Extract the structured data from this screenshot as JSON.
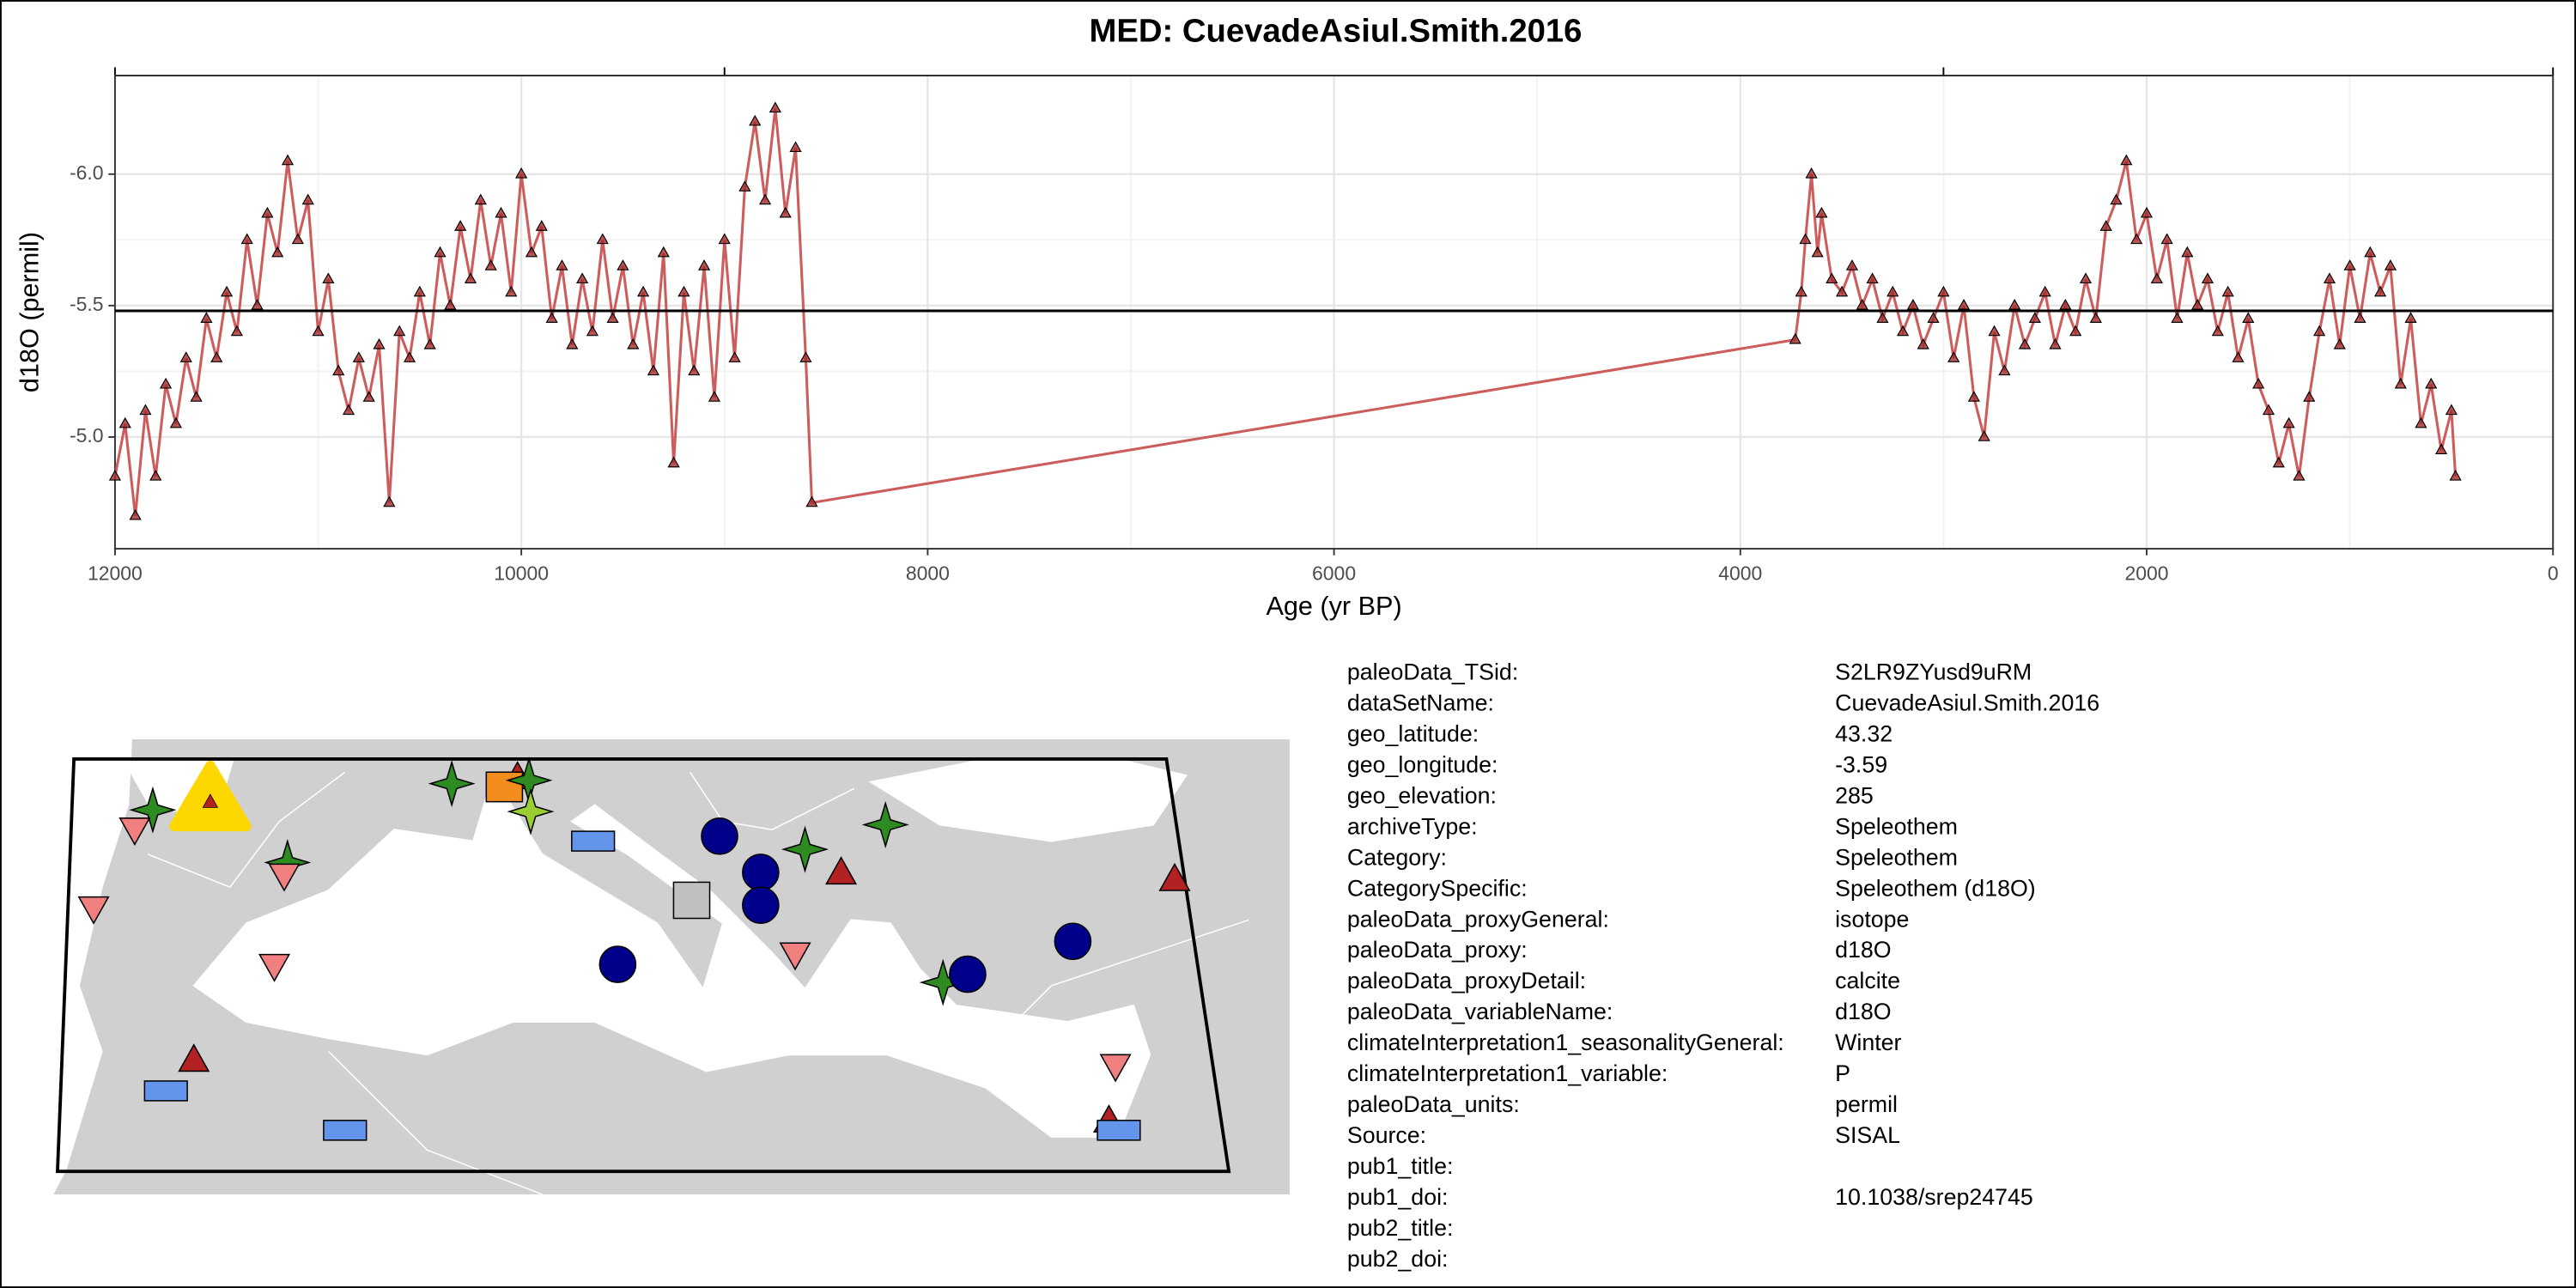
{
  "chart_data": {
    "type": "line",
    "title": "MED: CuevadeAsiul.Smith.2016",
    "xlabel": "Age (yr BP)",
    "ylabel": "d18O (permil)",
    "x": [
      12000,
      11950,
      11900,
      11850,
      11800,
      11750,
      11700,
      11650,
      11600,
      11550,
      11500,
      11450,
      11400,
      11350,
      11300,
      11250,
      11200,
      11150,
      11100,
      11050,
      11000,
      10950,
      10900,
      10850,
      10800,
      10750,
      10700,
      10650,
      10600,
      10550,
      10500,
      10450,
      10400,
      10350,
      10300,
      10250,
      10200,
      10150,
      10100,
      10050,
      10000,
      9950,
      9900,
      9850,
      9800,
      9750,
      9700,
      9650,
      9600,
      9550,
      9500,
      9450,
      9400,
      9350,
      9300,
      9250,
      9200,
      9150,
      9100,
      9050,
      9000,
      8950,
      8900,
      8850,
      8800,
      8750,
      8700,
      8650,
      8600,
      8570,
      3730,
      3700,
      3680,
      3650,
      3620,
      3600,
      3550,
      3500,
      3450,
      3400,
      3350,
      3300,
      3250,
      3200,
      3150,
      3100,
      3050,
      3000,
      2950,
      2900,
      2850,
      2800,
      2750,
      2700,
      2650,
      2600,
      2550,
      2500,
      2450,
      2400,
      2350,
      2300,
      2250,
      2200,
      2150,
      2100,
      2050,
      2000,
      1950,
      1900,
      1850,
      1800,
      1750,
      1700,
      1650,
      1600,
      1550,
      1500,
      1450,
      1400,
      1350,
      1300,
      1250,
      1200,
      1150,
      1100,
      1050,
      1000,
      950,
      900,
      850,
      800,
      750,
      700,
      650,
      600,
      550,
      500,
      480
    ],
    "values": [
      -4.85,
      -5.05,
      -4.7,
      -5.1,
      -4.85,
      -5.2,
      -5.05,
      -5.3,
      -5.15,
      -5.45,
      -5.3,
      -5.55,
      -5.4,
      -5.75,
      -5.5,
      -5.85,
      -5.7,
      -6.05,
      -5.75,
      -5.9,
      -5.4,
      -5.6,
      -5.25,
      -5.1,
      -5.3,
      -5.15,
      -5.35,
      -4.75,
      -5.4,
      -5.3,
      -5.55,
      -5.35,
      -5.7,
      -5.5,
      -5.8,
      -5.6,
      -5.9,
      -5.65,
      -5.85,
      -5.55,
      -6.0,
      -5.7,
      -5.8,
      -5.45,
      -5.65,
      -5.35,
      -5.6,
      -5.4,
      -5.75,
      -5.45,
      -5.65,
      -5.35,
      -5.55,
      -5.25,
      -5.7,
      -4.9,
      -5.55,
      -5.25,
      -5.65,
      -5.15,
      -5.75,
      -5.3,
      -5.95,
      -6.2,
      -5.9,
      -6.25,
      -5.85,
      -6.1,
      -5.3,
      -4.75,
      -5.37,
      -5.55,
      -5.75,
      -6.0,
      -5.7,
      -5.85,
      -5.6,
      -5.55,
      -5.65,
      -5.5,
      -5.6,
      -5.45,
      -5.55,
      -5.4,
      -5.5,
      -5.35,
      -5.45,
      -5.55,
      -5.3,
      -5.5,
      -5.15,
      -5.0,
      -5.4,
      -5.25,
      -5.5,
      -5.35,
      -5.45,
      -5.55,
      -5.35,
      -5.5,
      -5.4,
      -5.6,
      -5.45,
      -5.8,
      -5.9,
      -6.05,
      -5.75,
      -5.85,
      -5.6,
      -5.75,
      -5.45,
      -5.7,
      -5.5,
      -5.6,
      -5.4,
      -5.55,
      -5.3,
      -5.45,
      -5.2,
      -5.1,
      -4.9,
      -5.05,
      -4.85,
      -5.15,
      -5.4,
      -5.6,
      -5.35,
      -5.65,
      -5.45,
      -5.7,
      -5.55,
      -5.65,
      -5.2,
      -5.45,
      -5.05,
      -5.2,
      -4.95,
      -5.1,
      -4.85
    ],
    "color": "#cd5c5c",
    "marker_color": "#a52a2a",
    "xlim": [
      12000,
      0
    ],
    "xticks": [
      12000,
      10000,
      8000,
      6000,
      4000,
      2000,
      0
    ],
    "top_xticks": [
      12000,
      9000,
      3000,
      0
    ],
    "ylim": [
      -4.575,
      -6.375
    ],
    "yticks": [
      {
        "value": -6,
        "label": "-6.0"
      },
      -5.5,
      {
        "value": -5,
        "label": "-5.0"
      }
    ],
    "mean_line": -5.48,
    "grid": true
  },
  "metadata": {
    "rows": [
      {
        "key": "paleoData_TSid:",
        "value": "S2LR9ZYusd9uRM"
      },
      {
        "key": "dataSetName:",
        "value": "CuevadeAsiul.Smith.2016"
      },
      {
        "key": "geo_latitude:",
        "value": "43.32"
      },
      {
        "key": "geo_longitude:",
        "value": "-3.59"
      },
      {
        "key": "geo_elevation:",
        "value": "285"
      },
      {
        "key": "archiveType:",
        "value": "Speleothem"
      },
      {
        "key": "Category:",
        "value": "Speleothem"
      },
      {
        "key": "CategorySpecific:",
        "value": "Speleothem (d18O)"
      },
      {
        "key": "paleoData_proxyGeneral:",
        "value": "isotope"
      },
      {
        "key": "paleoData_proxy:",
        "value": "d18O"
      },
      {
        "key": "paleoData_proxyDetail:",
        "value": "calcite"
      },
      {
        "key": "paleoData_variableName:",
        "value": "d18O"
      },
      {
        "key": "climateInterpretation1_seasonalityGeneral:",
        "value": "Winter"
      },
      {
        "key": "climateInterpretation1_variable:",
        "value": "P"
      },
      {
        "key": "paleoData_units:",
        "value": "permil"
      },
      {
        "key": "Source:",
        "value": "SISAL"
      },
      {
        "key": "pub1_title:"
      },
      {
        "key": "pub1_doi:",
        "value": "10.1038/srep24745"
      },
      {
        "key": "pub2_title:"
      },
      {
        "key": "pub2_doi:"
      }
    ]
  }
}
